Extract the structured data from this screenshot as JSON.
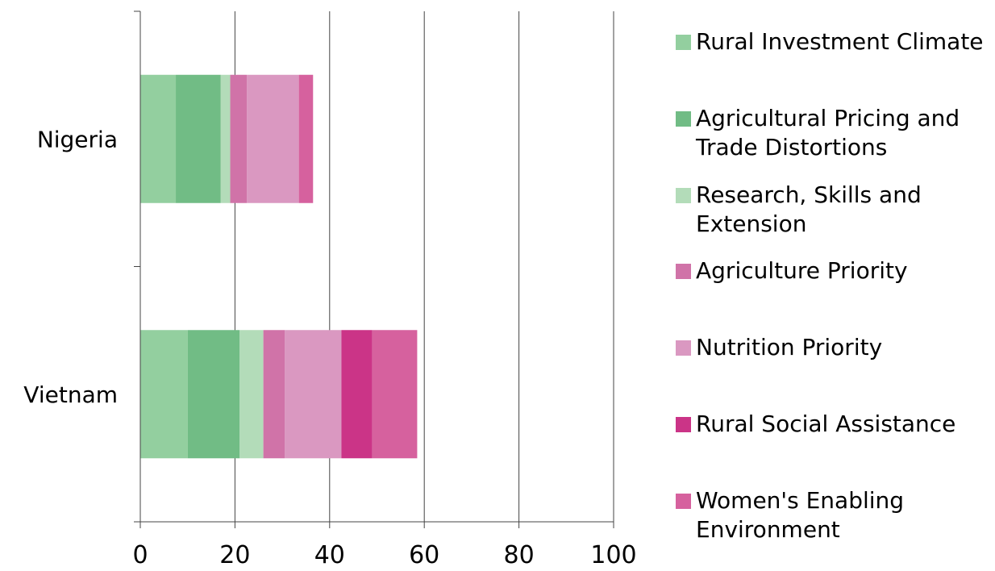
{
  "chart_data": {
    "type": "bar",
    "orientation": "horizontal",
    "stacked": true,
    "categories": [
      "Nigeria",
      "Vietnam"
    ],
    "series": [
      {
        "name": "Rural Investment Climate",
        "values": [
          7.5,
          10
        ],
        "color": "#93cf9f"
      },
      {
        "name": "Agricultural Pricing and Trade Distortions",
        "values": [
          9.5,
          11
        ],
        "color": "#71bc85"
      },
      {
        "name": "Research, Skills and Extension",
        "values": [
          2,
          5
        ],
        "color": "#b3dcb9"
      },
      {
        "name": "Agriculture Priority",
        "values": [
          3.5,
          4.5
        ],
        "color": "#d073a8"
      },
      {
        "name": "Nutrition Priority",
        "values": [
          11,
          12
        ],
        "color": "#da98c1"
      },
      {
        "name": "Rural Social Assistance",
        "values": [
          0,
          6.5
        ],
        "color": "#cb3487"
      },
      {
        "name": "Women's Enabling Environment",
        "values": [
          3,
          9.5
        ],
        "color": "#d6619e"
      }
    ],
    "xlim": [
      0,
      100
    ],
    "xticks": [
      "0",
      "20",
      "40",
      "60",
      "80",
      "100"
    ],
    "xtick_values": [
      0,
      20,
      40,
      60,
      80,
      100
    ],
    "grid": true,
    "legend": "right"
  }
}
